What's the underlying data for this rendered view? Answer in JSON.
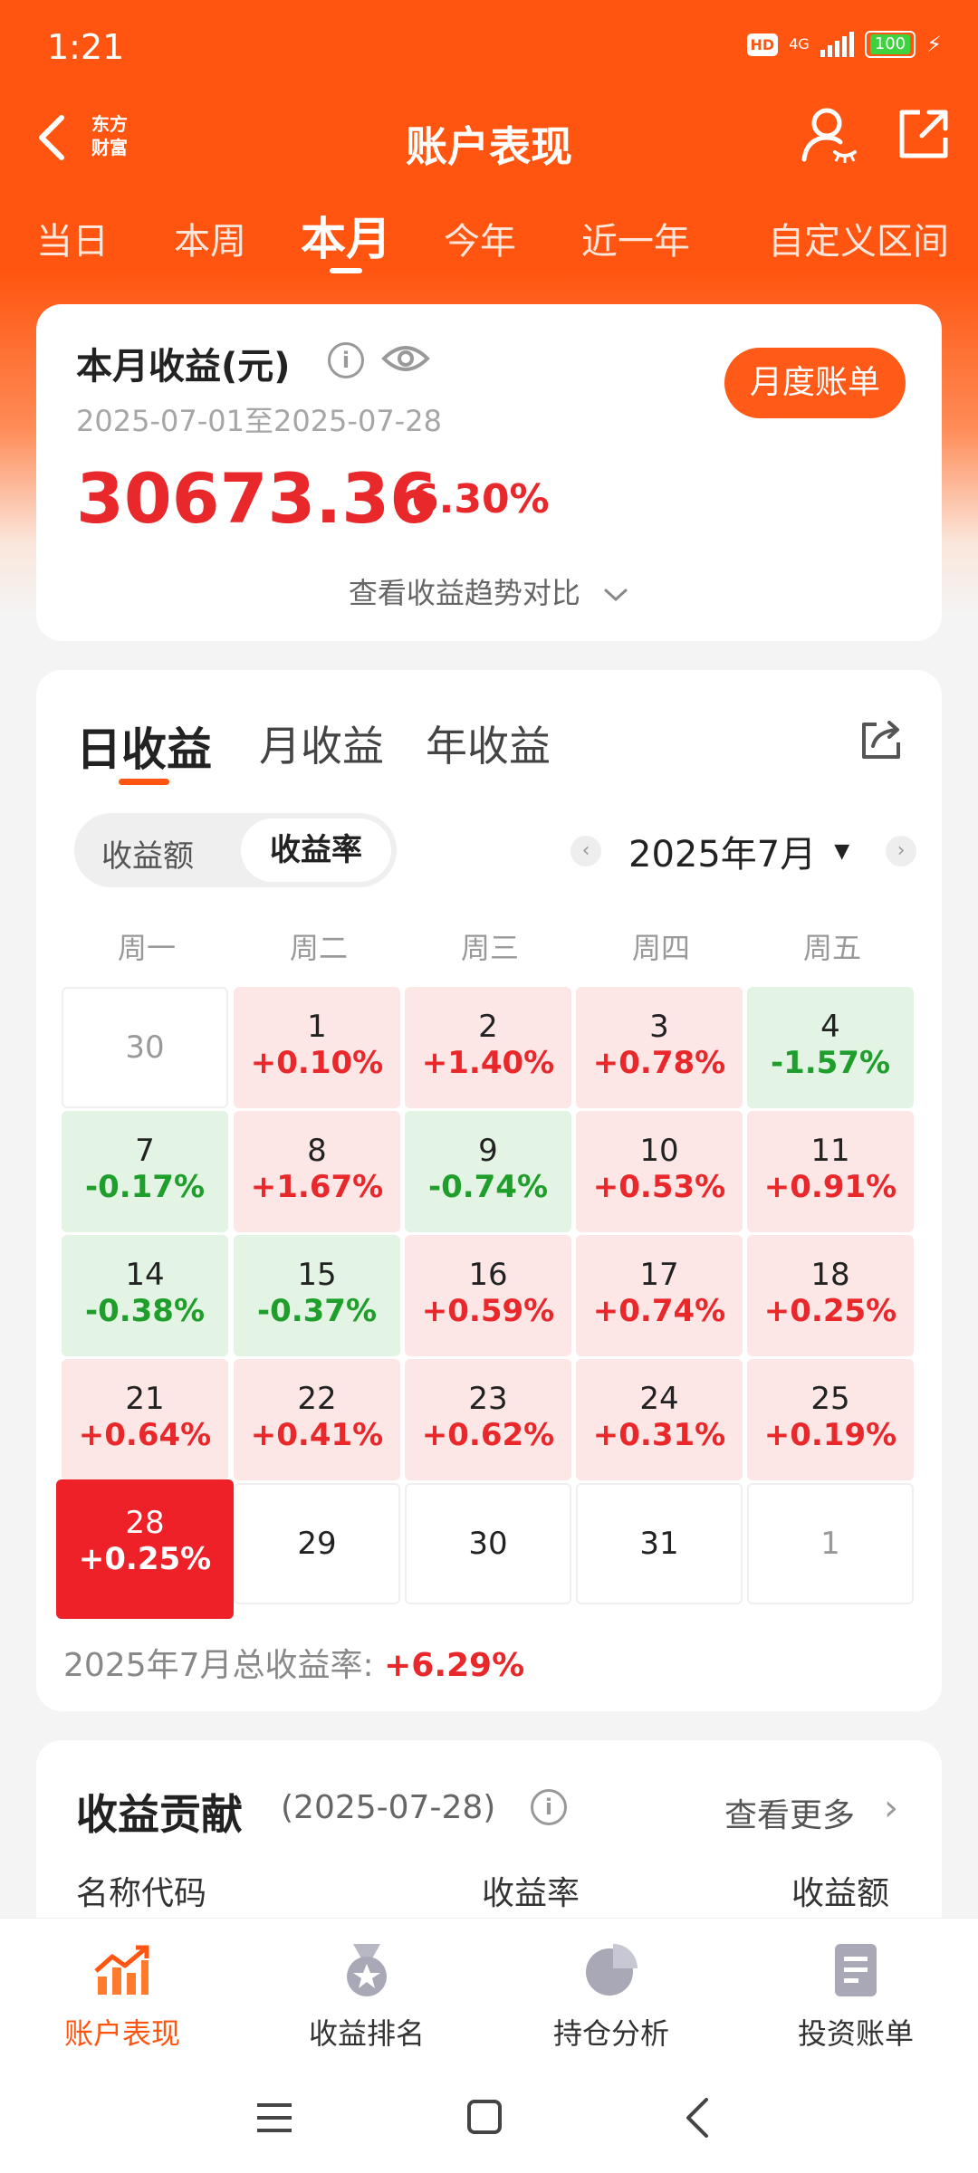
{
  "status_bar": {
    "time": "1:21",
    "hd": "HD",
    "network": "4G",
    "battery": "100"
  },
  "nav": {
    "logo_line1": "东方",
    "logo_line2": "财富",
    "title": "账户表现"
  },
  "period_tabs": [
    "当日",
    "本周",
    "本月",
    "今年",
    "近一年",
    "自定义区间"
  ],
  "period_active": "本月",
  "summary": {
    "title": "本月收益(元)",
    "date_range": "2025-07-01至2025-07-28",
    "amount": "30673.36",
    "rate": "6.30%",
    "bill_button": "月度账单",
    "trend_link": "查看收益趋势对比"
  },
  "earnings": {
    "tabs": [
      "日收益",
      "月收益",
      "年收益"
    ],
    "active_tab": "日收益",
    "segment": [
      "收益额",
      "收益率"
    ],
    "segment_active": "收益率",
    "month_label": "2025年7月",
    "weekdays": [
      "周一",
      "周二",
      "周三",
      "周四",
      "周五"
    ],
    "calendar": [
      [
        {
          "day": "30",
          "pct": "",
          "state": "empty-gray"
        },
        {
          "day": "1",
          "pct": "+0.10%",
          "state": "up"
        },
        {
          "day": "2",
          "pct": "+1.40%",
          "state": "up"
        },
        {
          "day": "3",
          "pct": "+0.78%",
          "state": "up"
        },
        {
          "day": "4",
          "pct": "-1.57%",
          "state": "down"
        }
      ],
      [
        {
          "day": "7",
          "pct": "-0.17%",
          "state": "down"
        },
        {
          "day": "8",
          "pct": "+1.67%",
          "state": "up"
        },
        {
          "day": "9",
          "pct": "-0.74%",
          "state": "down"
        },
        {
          "day": "10",
          "pct": "+0.53%",
          "state": "up"
        },
        {
          "day": "11",
          "pct": "+0.91%",
          "state": "up"
        }
      ],
      [
        {
          "day": "14",
          "pct": "-0.38%",
          "state": "down"
        },
        {
          "day": "15",
          "pct": "-0.37%",
          "state": "down"
        },
        {
          "day": "16",
          "pct": "+0.59%",
          "state": "up"
        },
        {
          "day": "17",
          "pct": "+0.74%",
          "state": "up"
        },
        {
          "day": "18",
          "pct": "+0.25%",
          "state": "up"
        }
      ],
      [
        {
          "day": "21",
          "pct": "+0.64%",
          "state": "up"
        },
        {
          "day": "22",
          "pct": "+0.41%",
          "state": "up"
        },
        {
          "day": "23",
          "pct": "+0.62%",
          "state": "up"
        },
        {
          "day": "24",
          "pct": "+0.31%",
          "state": "up"
        },
        {
          "day": "25",
          "pct": "+0.19%",
          "state": "up"
        }
      ],
      [
        {
          "day": "28",
          "pct": "+0.25%",
          "state": "today"
        },
        {
          "day": "29",
          "pct": "",
          "state": "empty"
        },
        {
          "day": "30",
          "pct": "",
          "state": "empty"
        },
        {
          "day": "31",
          "pct": "",
          "state": "empty"
        },
        {
          "day": "1",
          "pct": "",
          "state": "empty-gray"
        }
      ]
    ],
    "total_label": "2025年7月总收益率:",
    "total_value": "+6.29%"
  },
  "contribution": {
    "title": "收益贡献",
    "date": "(2025-07-28)",
    "more": "查看更多",
    "columns": [
      "名称代码",
      "收益率",
      "收益额"
    ]
  },
  "bottom_nav": [
    {
      "label": "账户表现",
      "icon": "trend-chart-icon",
      "active": true
    },
    {
      "label": "收益排名",
      "icon": "medal-icon",
      "active": false
    },
    {
      "label": "持仓分析",
      "icon": "pie-chart-icon",
      "active": false
    },
    {
      "label": "投资账单",
      "icon": "document-icon",
      "active": false
    }
  ],
  "colors": {
    "brand": "#ff5510",
    "up": "#e8282b",
    "down": "#1f9e2c",
    "up_bg": "#fde6e6",
    "down_bg": "#e3f4e4"
  }
}
